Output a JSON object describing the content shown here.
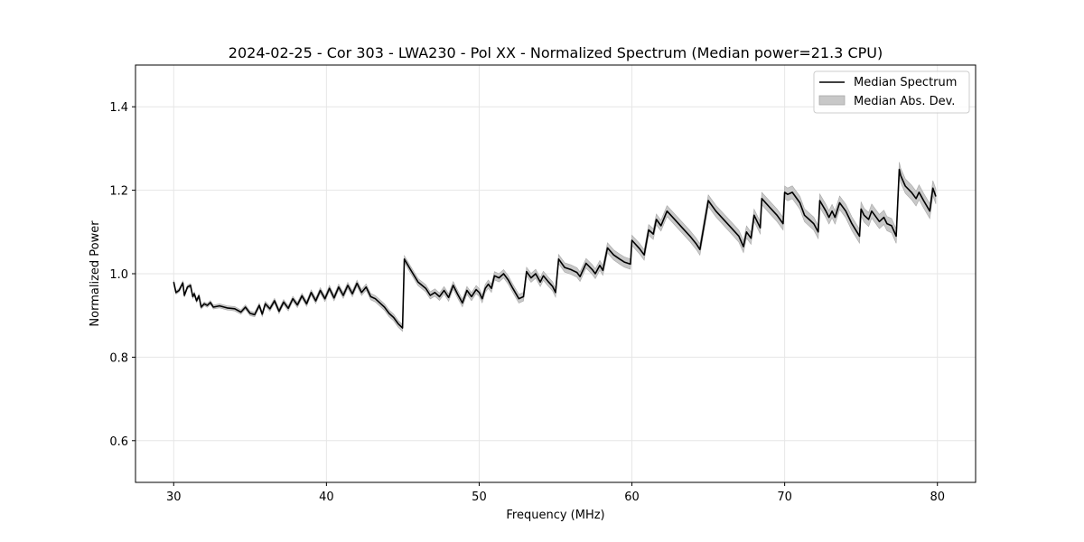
{
  "chart_data": {
    "type": "line",
    "title": "2024-02-25 - Cor 303 - LWA230 - Pol XX - Normalized Spectrum (Median power=21.3 CPU)",
    "xlabel": "Frequency (MHz)",
    "ylabel": "Normalized Power",
    "xlim": [
      27.5,
      82.5
    ],
    "ylim": [
      0.5,
      1.5
    ],
    "xticks": [
      30,
      40,
      50,
      60,
      70,
      80
    ],
    "yticks": [
      0.6,
      0.8,
      1.0,
      1.2,
      1.4
    ],
    "xtick_labels": [
      "30",
      "40",
      "50",
      "60",
      "70",
      "80"
    ],
    "ytick_labels": [
      "0.6",
      "0.8",
      "1.0",
      "1.2",
      "1.4"
    ],
    "grid": true,
    "legend_position": "top-right",
    "colors": {
      "line": "#000000",
      "band": "#c8c8c8",
      "band_edge": "#a8a8a8",
      "grid": "#e6e6e6"
    },
    "series": [
      {
        "name": "Median Spectrum",
        "kind": "line",
        "x": [
          30.0,
          30.15,
          30.35,
          30.6,
          30.7,
          30.9,
          31.1,
          31.25,
          31.35,
          31.5,
          31.65,
          31.8,
          32.0,
          32.2,
          32.4,
          32.6,
          33.0,
          33.5,
          34.0,
          34.4,
          34.7,
          35.0,
          35.3,
          35.6,
          35.8,
          36.0,
          36.3,
          36.6,
          36.9,
          37.2,
          37.5,
          37.8,
          38.1,
          38.4,
          38.7,
          39.0,
          39.3,
          39.6,
          39.9,
          40.2,
          40.5,
          40.8,
          41.1,
          41.4,
          41.7,
          42.0,
          42.3,
          42.6,
          42.9,
          43.2,
          43.5,
          43.8,
          44.1,
          44.4,
          44.7,
          44.98,
          45.1,
          45.5,
          46.0,
          46.5,
          46.8,
          47.1,
          47.4,
          47.7,
          48.0,
          48.3,
          48.6,
          48.9,
          49.2,
          49.5,
          49.8,
          50.0,
          50.2,
          50.4,
          50.6,
          50.8,
          51.0,
          51.3,
          51.6,
          51.9,
          52.2,
          52.6,
          52.9,
          53.1,
          53.4,
          53.7,
          54.0,
          54.2,
          54.5,
          54.8,
          55.0,
          55.2,
          55.6,
          56.0,
          56.4,
          56.6,
          57.0,
          57.4,
          57.6,
          57.9,
          58.1,
          58.4,
          58.8,
          59.2,
          59.5,
          59.9,
          60.0,
          60.5,
          60.8,
          61.1,
          61.4,
          61.6,
          61.9,
          62.3,
          62.8,
          63.3,
          63.8,
          64.2,
          64.45,
          65.0,
          65.5,
          66.0,
          66.5,
          67.0,
          67.3,
          67.5,
          67.8,
          68.0,
          68.4,
          68.5,
          69.0,
          69.5,
          69.9,
          70.0,
          70.2,
          70.5,
          71.0,
          71.3,
          71.6,
          71.9,
          72.2,
          72.3,
          72.7,
          72.9,
          73.1,
          73.3,
          73.6,
          74.0,
          74.4,
          74.9,
          75.0,
          75.2,
          75.5,
          75.7,
          75.9,
          76.2,
          76.5,
          76.7,
          77.0,
          77.3,
          77.5,
          77.6,
          77.9,
          78.3,
          78.6,
          78.8,
          79.1,
          79.5,
          79.7,
          79.9
        ],
        "y": [
          0.98,
          0.955,
          0.96,
          0.978,
          0.948,
          0.968,
          0.972,
          0.945,
          0.952,
          0.935,
          0.947,
          0.92,
          0.928,
          0.924,
          0.931,
          0.92,
          0.923,
          0.918,
          0.916,
          0.908,
          0.92,
          0.905,
          0.902,
          0.924,
          0.903,
          0.928,
          0.916,
          0.935,
          0.91,
          0.932,
          0.917,
          0.94,
          0.925,
          0.947,
          0.928,
          0.955,
          0.935,
          0.96,
          0.94,
          0.965,
          0.942,
          0.968,
          0.948,
          0.972,
          0.952,
          0.977,
          0.955,
          0.968,
          0.945,
          0.94,
          0.93,
          0.92,
          0.905,
          0.895,
          0.88,
          0.87,
          1.035,
          1.01,
          0.98,
          0.965,
          0.948,
          0.955,
          0.945,
          0.96,
          0.943,
          0.972,
          0.95,
          0.93,
          0.96,
          0.945,
          0.962,
          0.955,
          0.94,
          0.965,
          0.975,
          0.965,
          0.995,
          0.99,
          1.0,
          0.985,
          0.965,
          0.94,
          0.945,
          1.005,
          0.99,
          1.0,
          0.98,
          0.995,
          0.982,
          0.97,
          0.955,
          1.035,
          1.015,
          1.01,
          1.003,
          0.993,
          1.025,
          1.01,
          1.0,
          1.02,
          1.008,
          1.062,
          1.045,
          1.035,
          1.028,
          1.023,
          1.08,
          1.06,
          1.045,
          1.105,
          1.095,
          1.13,
          1.115,
          1.15,
          1.13,
          1.11,
          1.09,
          1.072,
          1.058,
          1.175,
          1.15,
          1.13,
          1.11,
          1.09,
          1.065,
          1.1,
          1.085,
          1.14,
          1.11,
          1.18,
          1.16,
          1.14,
          1.12,
          1.195,
          1.19,
          1.195,
          1.17,
          1.14,
          1.13,
          1.12,
          1.1,
          1.175,
          1.15,
          1.135,
          1.15,
          1.135,
          1.17,
          1.15,
          1.12,
          1.09,
          1.155,
          1.14,
          1.13,
          1.15,
          1.14,
          1.125,
          1.135,
          1.12,
          1.115,
          1.09,
          1.25,
          1.235,
          1.21,
          1.195,
          1.18,
          1.195,
          1.175,
          1.15,
          1.205,
          1.185
        ]
      },
      {
        "name": "Median Abs. Dev.",
        "kind": "band"
      }
    ]
  }
}
